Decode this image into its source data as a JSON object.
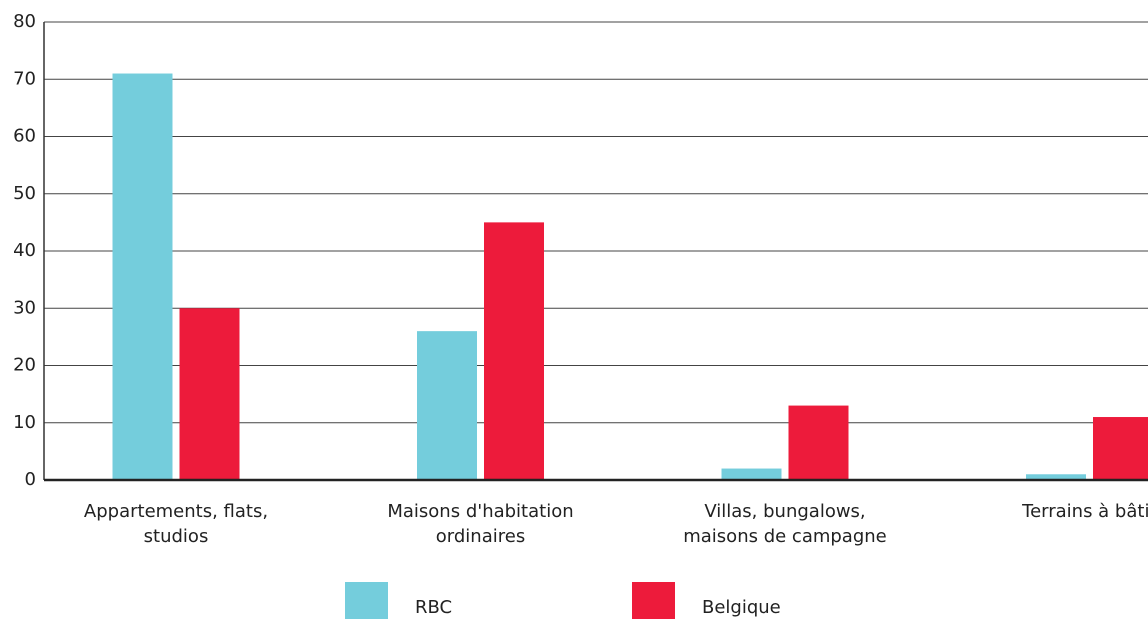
{
  "chart_data": {
    "type": "bar",
    "categories": [
      [
        "Appartements, flats,",
        "studios"
      ],
      [
        "Maisons d'habitation",
        "ordinaires"
      ],
      [
        "Villas, bungalows,",
        "maisons de campagne"
      ],
      [
        "Terrains à bâtir"
      ]
    ],
    "series": [
      {
        "name": "RBC",
        "color": "#74cddc",
        "values": [
          71,
          26,
          2,
          1
        ]
      },
      {
        "name": "Belgique",
        "color": "#ed1b3b",
        "values": [
          30,
          45,
          13,
          11
        ]
      }
    ],
    "ylim": [
      0,
      80
    ],
    "yticks": [
      0,
      10,
      20,
      30,
      40,
      50,
      60,
      70,
      80
    ],
    "grid": true,
    "legend": "bottom"
  }
}
